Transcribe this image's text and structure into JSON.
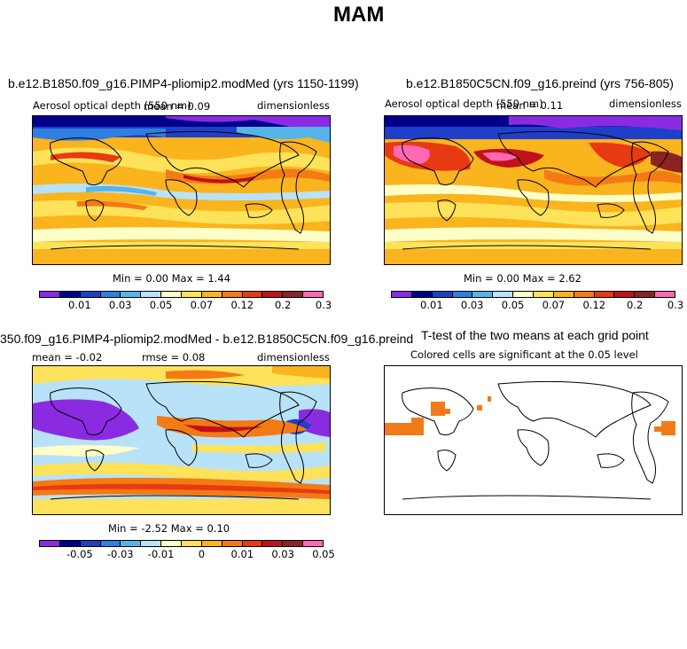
{
  "figure": {
    "title": "MAM"
  },
  "palettes": {
    "abs": [
      "#8a2be2",
      "#00008b",
      "#1e3fc8",
      "#2f7fe0",
      "#56b4e9",
      "#b8e2f8",
      "#fefec8",
      "#fde25a",
      "#f9b41e",
      "#f47a14",
      "#e83a12",
      "#c0121a",
      "#8b2323",
      "#ff69b4"
    ],
    "diff": [
      "#8a2be2",
      "#00008b",
      "#1e3fc8",
      "#2f7fe0",
      "#56b4e9",
      "#b8e2f8",
      "#fefec8",
      "#fde25a",
      "#f9b41e",
      "#f47a14",
      "#e83a12",
      "#c0121a",
      "#8b2323",
      "#ff69b4"
    ],
    "ocean_blue": "#00008b",
    "ttest_orange": "#f27a1a"
  },
  "panels": [
    {
      "title": "b.e12.B1850.f09_g16.PIMP4-pliomip2.modMed (yrs 1150-1199)",
      "left_label": "Aerosol optical depth (550 nm)",
      "center_label": "mean =  0.09",
      "right_label": "dimensionless",
      "minmax": "Min =    0.00 Max =    1.44",
      "ticks": [
        "0.01",
        "0.03",
        "0.05",
        "0.07",
        "0.12",
        "0.2",
        "0.3"
      ]
    },
    {
      "title": "b.e12.B1850C5CN.f09_g16.preind (yrs 756-805)",
      "left_label": "Aerosol optical depth (550 nm)",
      "center_label": "mean =  0.11",
      "right_label": "dimensionless",
      "minmax": "Min =    0.00 Max =    2.62",
      "ticks": [
        "0.01",
        "0.03",
        "0.05",
        "0.07",
        "0.12",
        "0.2",
        "0.3"
      ]
    },
    {
      "title": "350.f09_g16.PIMP4-pliomip2.modMed - b.e12.B1850C5CN.f09_g16.preind",
      "left_label": "mean =   -0.02",
      "center_label": "rmse =    0.08",
      "right_label": "dimensionless",
      "minmax": "Min =   -2.52 Max =    0.10",
      "ticks": [
        "-0.05",
        "-0.03",
        "-0.01",
        "0",
        "0.01",
        "0.03",
        "0.05"
      ]
    },
    {
      "title": "T-test of the two means at each grid point",
      "subtitle": "Colored cells are significant at the 0.05 level"
    }
  ]
}
